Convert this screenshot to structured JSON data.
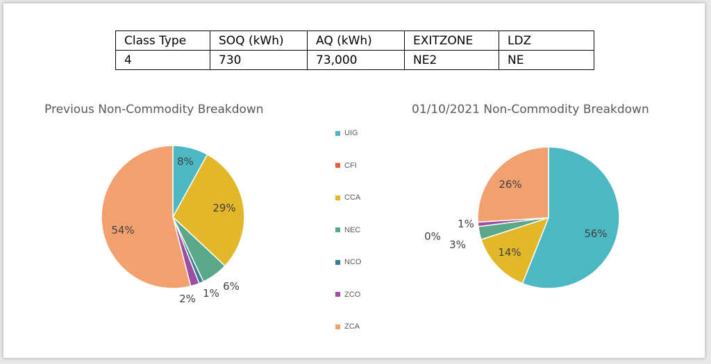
{
  "info_table": {
    "headers": [
      "Class Type",
      "SOQ (kWh)",
      "AQ (kWh)",
      "EXITZONE",
      "LDZ"
    ],
    "values": [
      "4",
      "730",
      "73,000",
      "NE2",
      "NE"
    ]
  },
  "legend": [
    {
      "name": "UIG",
      "color": "#4bb8c4"
    },
    {
      "name": "CFI",
      "color": "#e8603a"
    },
    {
      "name": "CCA",
      "color": "#e3b72a"
    },
    {
      "name": "NEC",
      "color": "#5aa88a"
    },
    {
      "name": "NCO",
      "color": "#3a7c98"
    },
    {
      "name": "ZCO",
      "color": "#9c4fa0"
    },
    {
      "name": "ZCA",
      "color": "#f3a06f"
    }
  ],
  "chart_data": [
    {
      "type": "pie",
      "title": "Previous Non-Commodity Breakdown",
      "categories": [
        "UIG",
        "CFI",
        "CCA",
        "NEC",
        "NCO",
        "ZCO",
        "ZCA"
      ],
      "values": [
        8,
        0,
        29,
        6,
        1,
        2,
        54
      ],
      "labels": [
        "8%",
        "",
        "29%",
        "6%",
        "1%",
        "2%",
        "54%"
      ]
    },
    {
      "type": "pie",
      "title": "01/10/2021 Non-Commodity Breakdown",
      "categories": [
        "UIG",
        "CFI",
        "CCA",
        "NEC",
        "NCO",
        "ZCO",
        "ZCA"
      ],
      "values": [
        56,
        0,
        14,
        3,
        0,
        1,
        26
      ],
      "labels": [
        "56%",
        "",
        "14%",
        "3%",
        "0%",
        "1%",
        "26%"
      ]
    }
  ]
}
